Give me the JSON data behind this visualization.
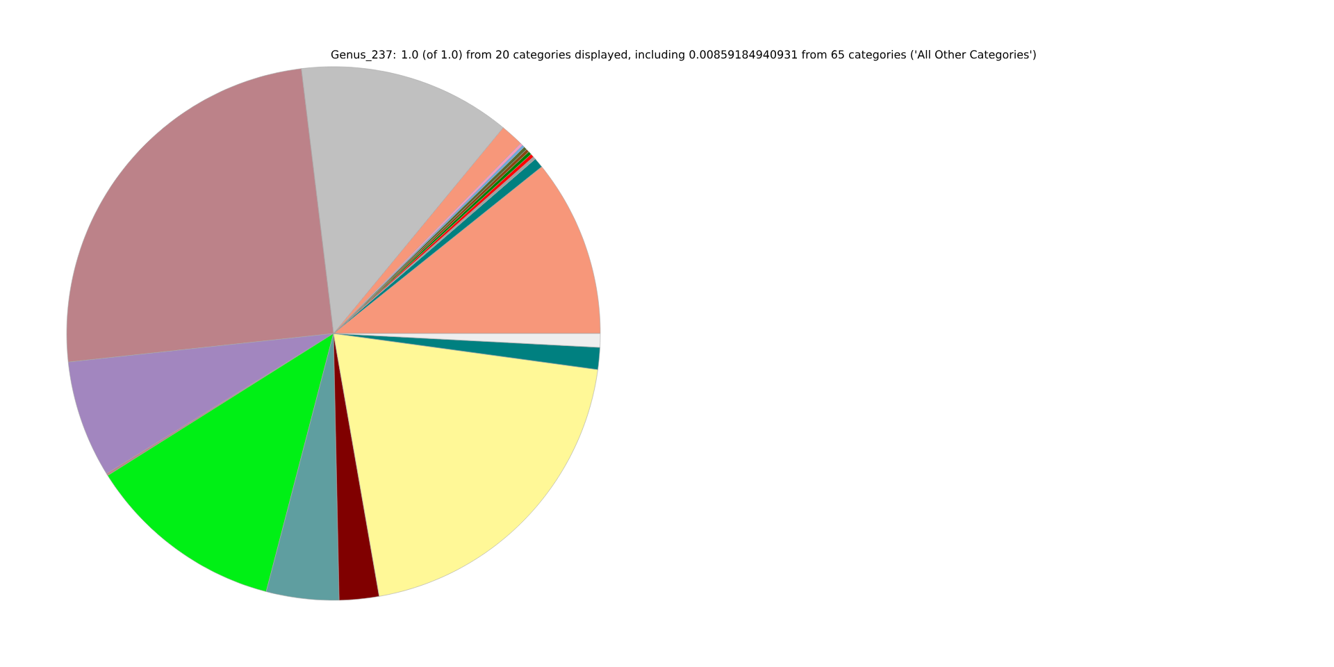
{
  "chart_data": {
    "type": "pie",
    "title": "Genus_237: 1.0 (of 1.0) from 20 categories displayed, including 0.00859184940931 from 65 categories ('All Other Categories')",
    "categories": [
      null,
      null,
      null,
      null,
      null,
      null,
      null,
      null,
      null,
      null,
      null,
      null,
      null,
      null,
      null,
      null,
      null,
      null,
      null,
      null
    ],
    "values": [
      10.75,
      0.6,
      0.17,
      0.21,
      0.2,
      0.19,
      0.2,
      0.15,
      0.16,
      1.4,
      12.9,
      24.78,
      7.1,
      0.13,
      12.0,
      4.4,
      2.4,
      20.1,
      1.33,
      0.83
    ],
    "colors": [
      "#f7977a",
      "#008080",
      "#a0a0a0",
      "#ff0000",
      "#008000",
      "#8b4513",
      "#556b2f",
      "#6fa8dc",
      "#f49ac2",
      "#f7977a",
      "#c0c0c0",
      "#bc8289",
      "#a286bf",
      "#bc8289",
      "#00f015",
      "#5f9ea0",
      "#800000",
      "#fff897",
      "#008080",
      "#eeeeee"
    ]
  }
}
